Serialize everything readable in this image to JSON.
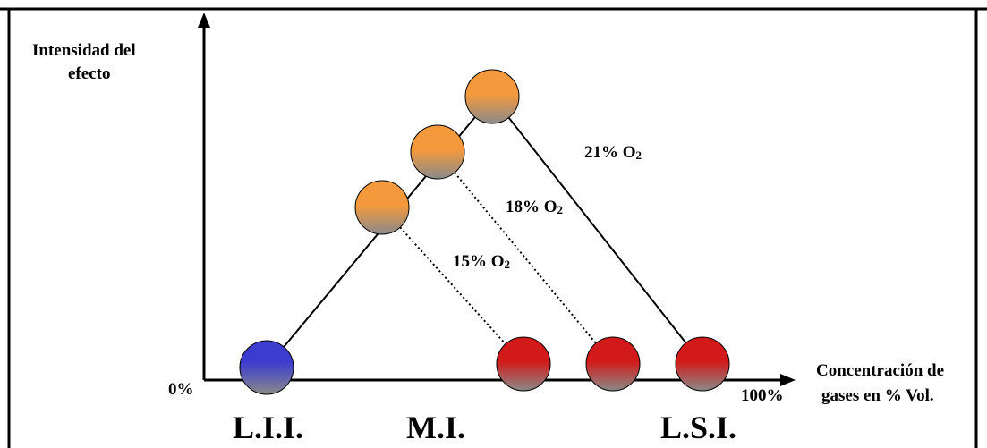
{
  "axes": {
    "y_label_line1": "Intensidad del",
    "y_label_line2": "efecto",
    "x_label_line1": "Concentración de",
    "x_label_line2": "gases en % Vol.",
    "origin_label": "0%",
    "x_end_label": "100%"
  },
  "points": {
    "lii": "L.I.I.",
    "mi": "M.I.",
    "lsi": "L.S.I."
  },
  "lines": [
    {
      "id": "o2-21",
      "prefix": "21% O",
      "sub": "2"
    },
    {
      "id": "o2-18",
      "prefix": "18% O",
      "sub": "2"
    },
    {
      "id": "o2-15",
      "prefix": "15% O",
      "sub": "2"
    }
  ],
  "colors": {
    "orange": "#f59a3c",
    "blue": "#3c3ccf",
    "red": "#d21a1a",
    "gray": "#8a8a8a"
  }
}
